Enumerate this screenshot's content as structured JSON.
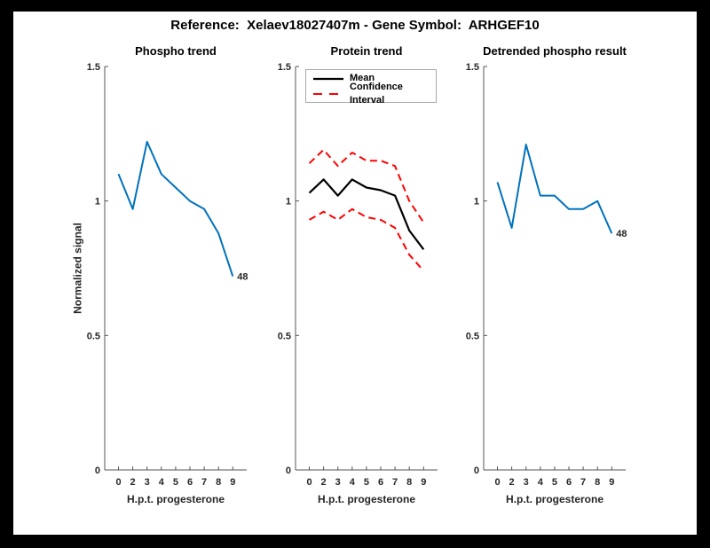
{
  "figure": {
    "title": "Reference:  Xelaev18027407m - Gene Symbol:  ARHGEF10",
    "background_color": "#000000",
    "canvas_color": "#FFFFFF"
  },
  "colors": {
    "line_blue": "#0072BD",
    "ci_red": "#FF0000",
    "mean_black": "#000000",
    "axis_gray": "#555555",
    "tick_text": "#262626"
  },
  "axes_shared": {
    "xlabel": "H.p.t. progesterone",
    "ylabel": "Normalized signal",
    "ylim": [
      0,
      1.5
    ],
    "yticks": [
      {
        "v": 0,
        "label": "0"
      },
      {
        "v": 0.5,
        "label": "0.5"
      },
      {
        "v": 1,
        "label": "1"
      },
      {
        "v": 1.5,
        "label": "1.5"
      }
    ],
    "xtick_labels": [
      "0",
      "2",
      "3",
      "4",
      "5",
      "6",
      "7",
      "8",
      "9"
    ],
    "grid": false
  },
  "chart_data": [
    {
      "type": "line",
      "title": "Phospho trend",
      "xlabel": "H.p.t. progesterone",
      "ylabel": "Normalized signal",
      "ylim": [
        0,
        1.5
      ],
      "x_labels": [
        "0",
        "2",
        "3",
        "4",
        "5",
        "6",
        "7",
        "8",
        "9"
      ],
      "series": [
        {
          "name": "Phospho",
          "color": "#0072BD",
          "dash": "none",
          "width": 2,
          "values": [
            1.1,
            0.97,
            1.22,
            1.1,
            1.05,
            1.0,
            0.97,
            0.88,
            0.72
          ]
        }
      ],
      "end_label": "48"
    },
    {
      "type": "line",
      "title": "Protein trend",
      "xlabel": "H.p.t. progesterone",
      "ylabel": "Normalized signal",
      "ylim": [
        0,
        1.5
      ],
      "x_labels": [
        "0",
        "2",
        "3",
        "4",
        "5",
        "6",
        "7",
        "8",
        "9"
      ],
      "legend": [
        "Mean",
        "Confidence Interval"
      ],
      "legend_position": "top-left-inside",
      "series": [
        {
          "name": "CI upper",
          "color": "#FF0000",
          "dash": "8 5",
          "width": 2,
          "values": [
            1.14,
            1.19,
            1.13,
            1.18,
            1.15,
            1.15,
            1.13,
            1.0,
            0.92
          ]
        },
        {
          "name": "CI lower",
          "color": "#FF0000",
          "dash": "8 5",
          "width": 2,
          "values": [
            0.93,
            0.96,
            0.93,
            0.97,
            0.94,
            0.93,
            0.9,
            0.8,
            0.74
          ]
        },
        {
          "name": "Mean",
          "color": "#000000",
          "dash": "none",
          "width": 2.2,
          "values": [
            1.03,
            1.08,
            1.02,
            1.08,
            1.05,
            1.04,
            1.02,
            0.89,
            0.82
          ]
        }
      ]
    },
    {
      "type": "line",
      "title": "Detrended phospho result",
      "xlabel": "H.p.t. progesterone",
      "ylabel": "Normalized signal",
      "ylim": [
        0,
        1.5
      ],
      "x_labels": [
        "0",
        "2",
        "3",
        "4",
        "5",
        "6",
        "7",
        "8",
        "9"
      ],
      "series": [
        {
          "name": "Detrended phospho",
          "color": "#0072BD",
          "dash": "none",
          "width": 2,
          "values": [
            1.07,
            0.9,
            1.21,
            1.02,
            1.02,
            0.97,
            0.97,
            1.0,
            0.88
          ]
        }
      ],
      "end_label": "48"
    }
  ]
}
